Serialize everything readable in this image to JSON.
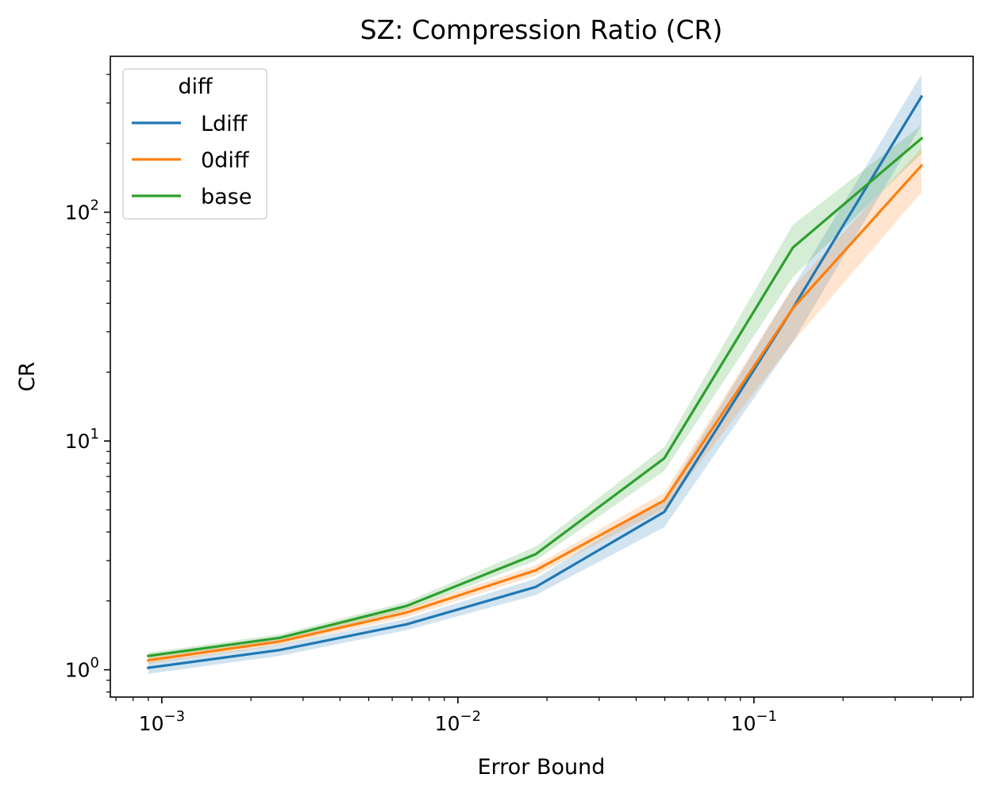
{
  "chart_data": {
    "type": "line",
    "title": "SZ: Compression Ratio (CR)",
    "xlabel": "Error Bound",
    "ylabel": "CR",
    "xscale": "log",
    "yscale": "log",
    "xlim": [
      0.00067,
      0.55
    ],
    "ylim": [
      0.76,
      480
    ],
    "x_ticks": [
      {
        "value": 0.001,
        "base": "10",
        "exp": "−3"
      },
      {
        "value": 0.01,
        "base": "10",
        "exp": "−2"
      },
      {
        "value": 0.1,
        "base": "10",
        "exp": "−1"
      }
    ],
    "y_ticks": [
      {
        "value": 1,
        "base": "10",
        "exp": "0"
      },
      {
        "value": 10,
        "base": "10",
        "exp": "1"
      },
      {
        "value": 100,
        "base": "10",
        "exp": "2"
      }
    ],
    "grid": false,
    "legend": {
      "title": "diff",
      "position": "top-left"
    },
    "x": [
      0.0009,
      0.0025,
      0.0067,
      0.0183,
      0.0498,
      0.1353,
      0.3679
    ],
    "series": [
      {
        "name": "Ldiff",
        "color": "#1f77b4",
        "values": [
          1.02,
          1.22,
          1.58,
          2.3,
          4.9,
          38,
          320
        ],
        "lower": [
          0.96,
          1.15,
          1.49,
          2.12,
          4.2,
          27,
          240
        ],
        "upper": [
          1.08,
          1.29,
          1.67,
          2.5,
          5.6,
          47,
          400
        ]
      },
      {
        "name": "0diff",
        "color": "#ff7f0e",
        "values": [
          1.1,
          1.33,
          1.78,
          2.72,
          5.5,
          38,
          160
        ],
        "lower": [
          1.06,
          1.28,
          1.7,
          2.58,
          5.05,
          27,
          122
        ],
        "upper": [
          1.14,
          1.38,
          1.86,
          2.86,
          5.95,
          47,
          190
        ]
      },
      {
        "name": "base",
        "color": "#2ca02c",
        "values": [
          1.15,
          1.38,
          1.9,
          3.2,
          8.4,
          70,
          210
        ],
        "lower": [
          1.11,
          1.33,
          1.82,
          3.0,
          7.4,
          52,
          180
        ],
        "upper": [
          1.19,
          1.43,
          1.98,
          3.45,
          9.4,
          88,
          240
        ]
      }
    ]
  }
}
